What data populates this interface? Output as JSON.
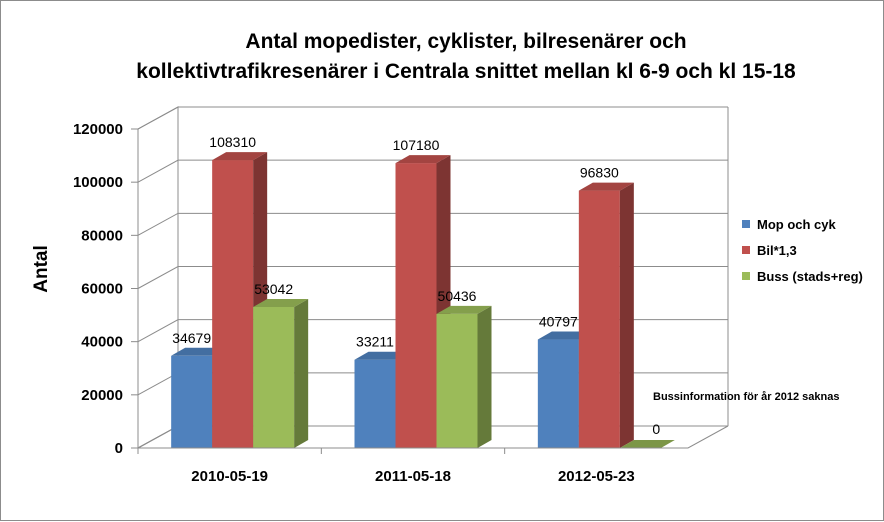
{
  "chart_data": {
    "type": "bar",
    "title": "Antal mopedister, cyklister, bilresenärer och kollektivtrafikresenärer i Centrala snittet mellan kl 6-9 och kl 15-18",
    "title_lines": [
      "Antal mopedister, cyklister, bilresenärer och",
      "kollektivtrafikresenärer i Centrala snittet mellan kl 6-9 och kl 15-18"
    ],
    "xlabel": "",
    "ylabel": "Antal",
    "ylim": [
      0,
      120000
    ],
    "yticks": [
      0,
      20000,
      40000,
      60000,
      80000,
      100000,
      120000
    ],
    "categories": [
      "2010-05-19",
      "2011-05-18",
      "2012-05-23"
    ],
    "series": [
      {
        "name": "Mop och cyk",
        "values": [
          34679,
          33211,
          40797
        ],
        "color": "#4F81BD"
      },
      {
        "name": "Bil*1,3",
        "values": [
          108310,
          107180,
          96830
        ],
        "color": "#C0504D"
      },
      {
        "name": "Buss (stads+reg)",
        "values": [
          53042,
          50436,
          0
        ],
        "color": "#9BBB59"
      }
    ],
    "annotation": "Bussinformation  för år 2012 saknas",
    "grid": true,
    "legend": "right"
  }
}
